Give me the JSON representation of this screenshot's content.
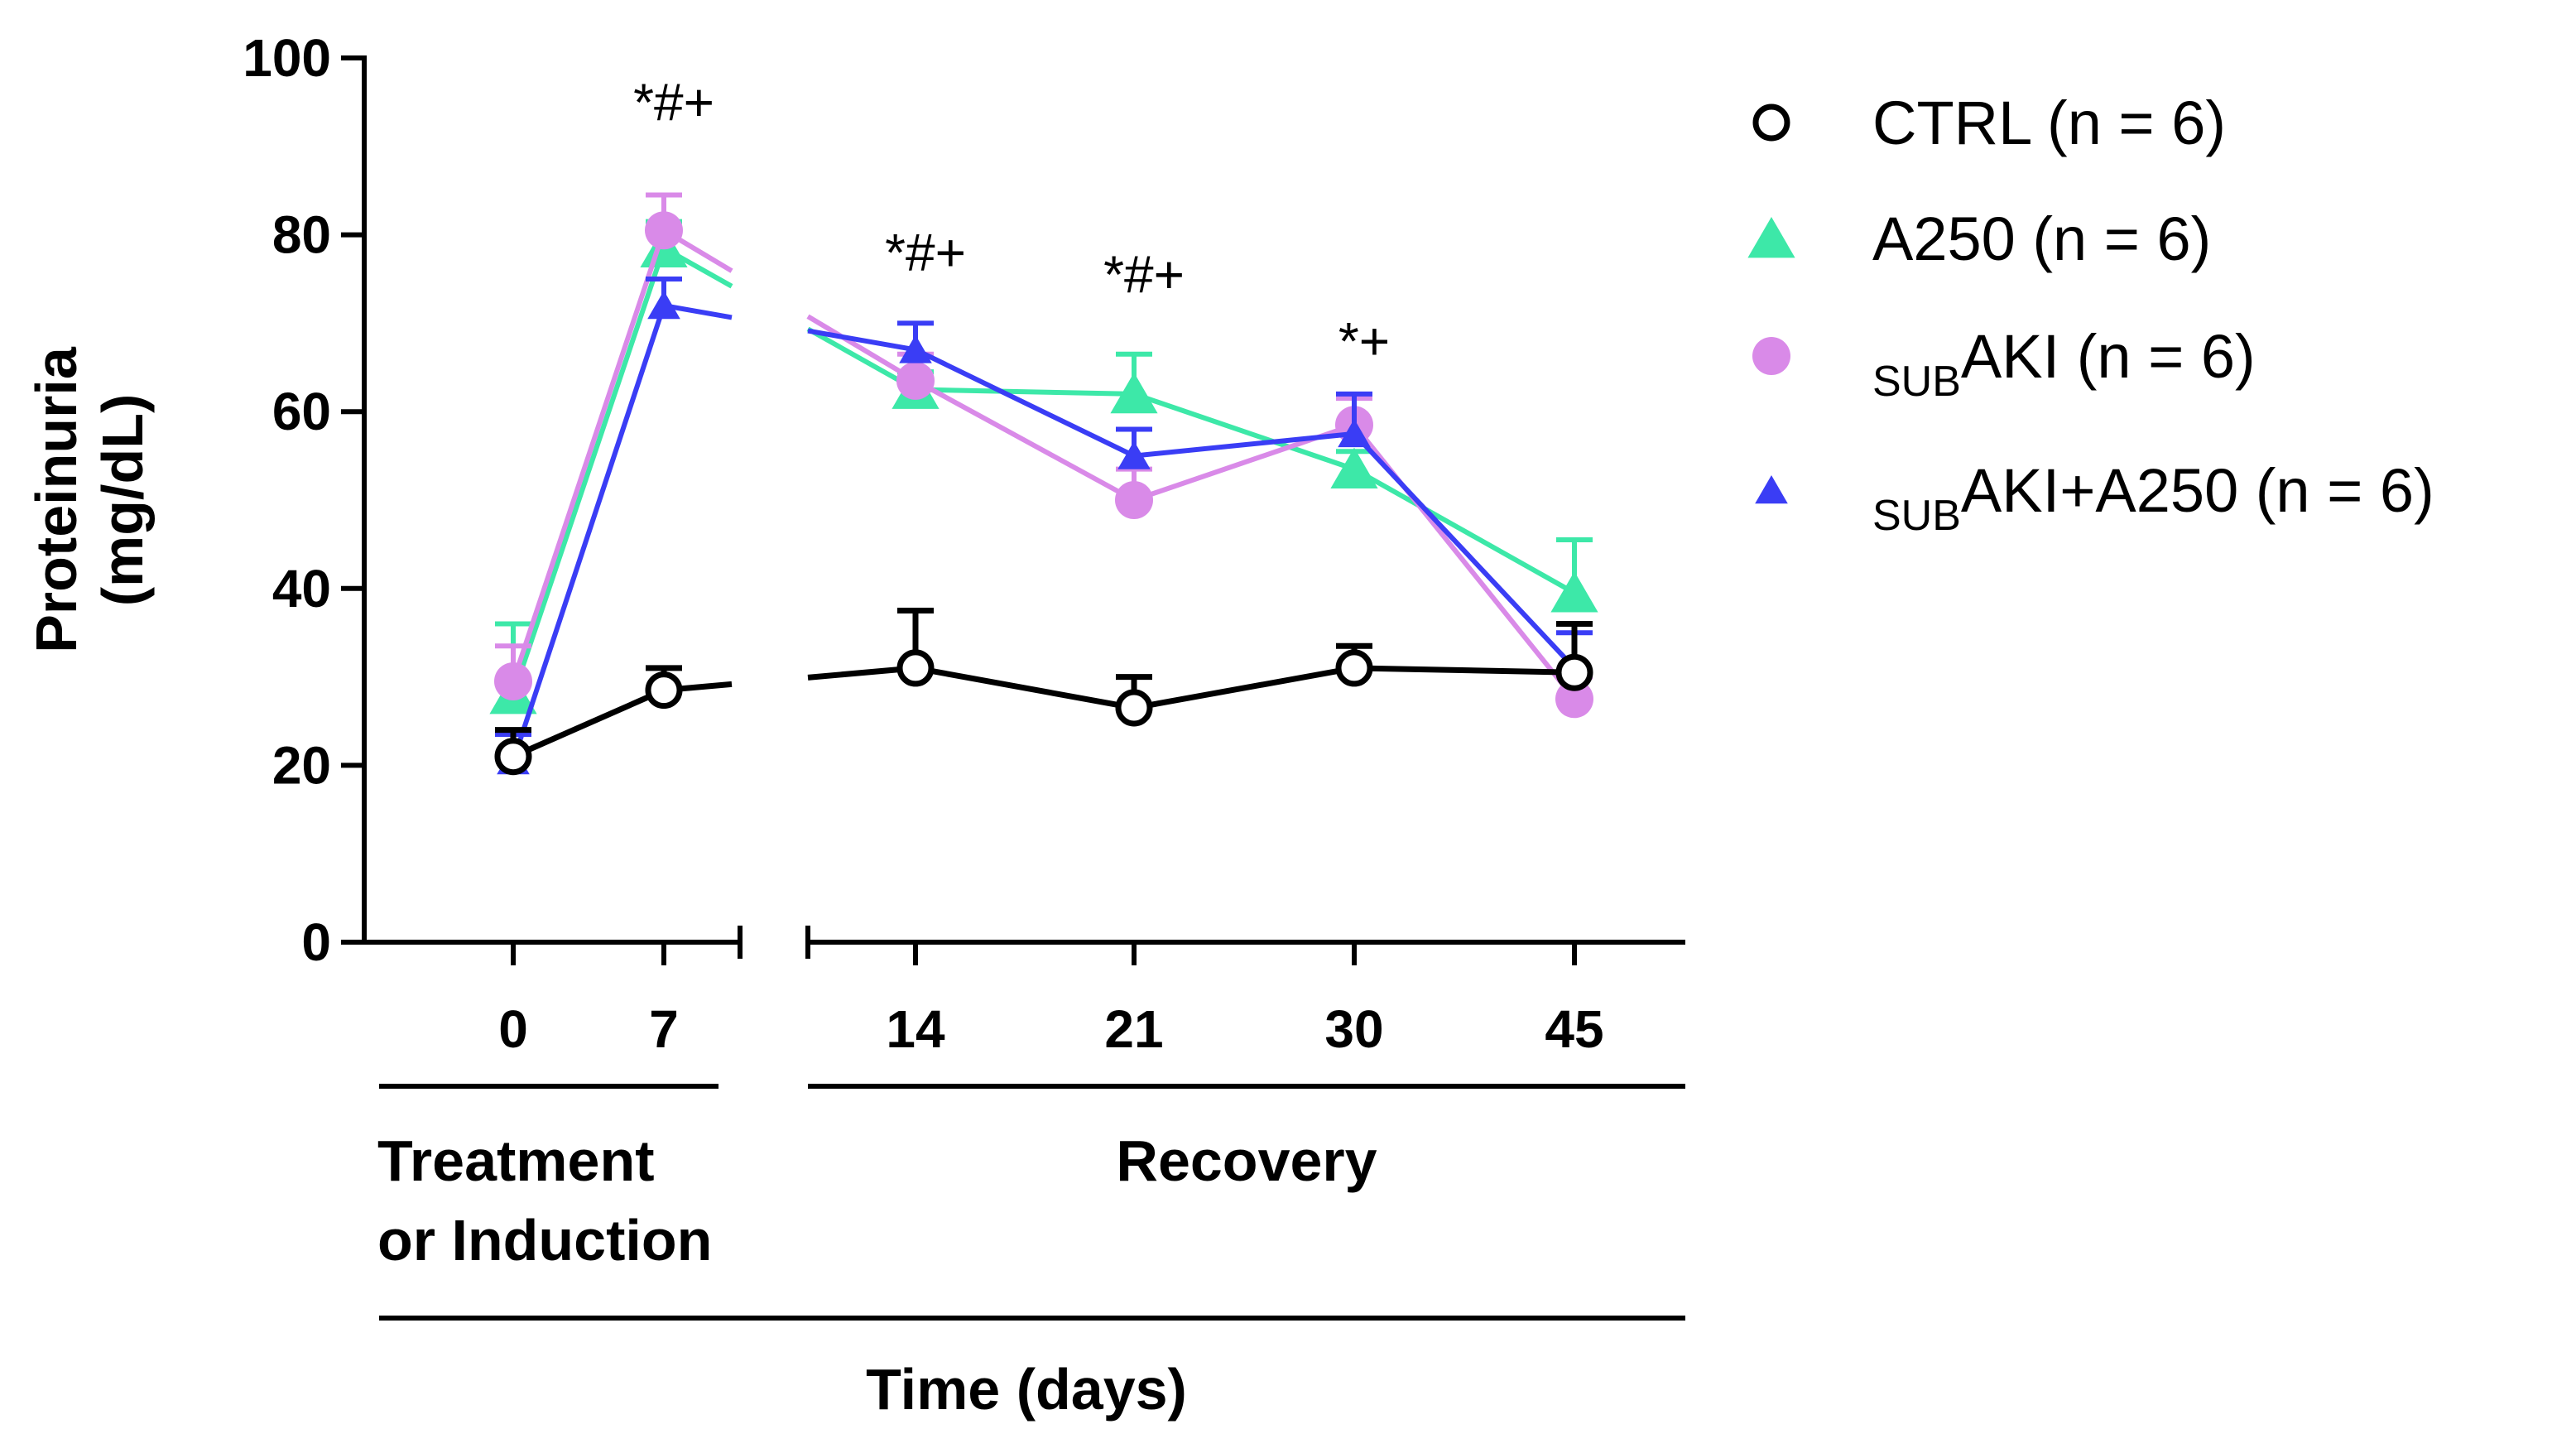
{
  "chart_data": {
    "type": "line",
    "xlabel": "Time (days)",
    "ylabel_lines": [
      "Proteinuria",
      "(mg/dL)"
    ],
    "ylim": [
      0,
      100
    ],
    "y_ticks": [
      "0",
      "20",
      "40",
      "60",
      "80",
      "100"
    ],
    "x_ticks": [
      "0",
      "7",
      "14",
      "21",
      "30",
      "45"
    ],
    "axis_break": "between 7 and 14",
    "phases": [
      {
        "label_lines": [
          "Treatment",
          "or Induction"
        ],
        "days": [
          "0",
          "7"
        ]
      },
      {
        "label_lines": [
          "Recovery"
        ],
        "days": [
          "14",
          "21",
          "30",
          "45"
        ]
      }
    ],
    "series": [
      {
        "name": "CTRL",
        "n_label": " (n = 6)",
        "marker": "open-circle",
        "color": "#000000",
        "values": [
          21,
          28.5,
          31,
          26.5,
          31,
          30.5
        ],
        "error": [
          3,
          2.5,
          6.5,
          3.5,
          2.5,
          5.5
        ]
      },
      {
        "name": "A250",
        "n_label": " (n = 6)",
        "marker": "triangle",
        "color": "#3de8a8",
        "values": [
          28,
          78.5,
          62.5,
          62,
          53.5,
          39.5
        ],
        "error": [
          8,
          3,
          2,
          4.5,
          2,
          6
        ]
      },
      {
        "name": "AKI",
        "sub_prefix": "SUB",
        "n_label": " (n = 6)",
        "marker": "filled-circle",
        "color": "#d98ae8",
        "values": [
          29.5,
          80.5,
          63.5,
          50,
          58.5,
          27.5
        ],
        "error": [
          4,
          4,
          3,
          3.5,
          3,
          2.5
        ]
      },
      {
        "name": "AKI+A250",
        "sub_prefix": "SUB",
        "n_label": " (n = 6)",
        "marker": "small-triangle",
        "color": "#3a3df5",
        "values": [
          20.5,
          72,
          67,
          55,
          57.5,
          31
        ],
        "error": [
          3,
          3,
          3,
          3,
          4.5,
          4
        ]
      }
    ],
    "annotations": [
      {
        "day": "7",
        "text": "*#+",
        "y": 95
      },
      {
        "day": "14",
        "text": "*#+",
        "y": 78
      },
      {
        "day": "21",
        "text": "*#+",
        "y": 75.5
      },
      {
        "day": "30",
        "text": "*+",
        "y": 68
      }
    ],
    "legend_position": "right"
  }
}
